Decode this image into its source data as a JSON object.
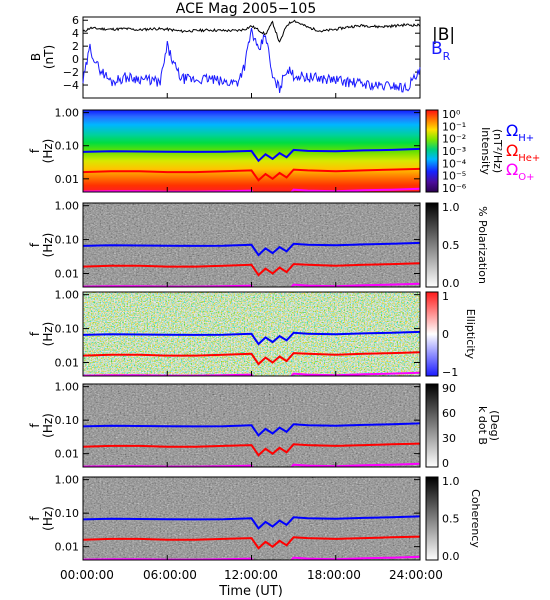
{
  "title": "ACE Mag 2005−105",
  "time_axis": {
    "label": "Time (UT)",
    "ticks": [
      "00:00:00",
      "06:00:00",
      "12:00:00",
      "18:00:00",
      "24:00:00"
    ],
    "hours": [
      0,
      6,
      12,
      18,
      24
    ]
  },
  "legend": {
    "b_abs": "|B|",
    "b_r_main": "B",
    "b_r_sub": "R",
    "h_main": "Ω",
    "h_sub": "H+",
    "he_main": "Ω",
    "he_sub": "He+",
    "o_main": "Ω",
    "o_sub": "O+"
  },
  "colors": {
    "b_abs": "#000000",
    "b_r": "#1a1aff",
    "omega_h": "#0000ff",
    "omega_he": "#ff0000",
    "omega_o": "#ff00ff"
  },
  "b_panel": {
    "ylabel_1": "B",
    "ylabel_2": "(nT)",
    "y_ticks": [
      "6",
      "4",
      "2",
      "0",
      "−2",
      "−4"
    ]
  },
  "freq_ylabel_1": "f",
  "freq_ylabel_2": "(Hz)",
  "freq_ticks": [
    "1.00",
    "0.10",
    "0.01"
  ],
  "colorbars": [
    {
      "label_1": "Intensity",
      "label_2": "(nT²/Hz)",
      "ticks": [
        "10⁰",
        "10⁻¹",
        "10⁻²",
        "10⁻³",
        "10⁻⁴",
        "10⁻⁵",
        "10⁻⁶"
      ],
      "scheme": "rainbow"
    },
    {
      "label_1": "% Polarization",
      "label_2": "",
      "ticks": [
        "1.0",
        "0.5",
        "0.0"
      ],
      "scheme": "gray"
    },
    {
      "label_1": "Ellipticity",
      "label_2": "",
      "ticks": [
        "1",
        "0",
        "−1"
      ],
      "scheme": "bwr"
    },
    {
      "label_1": "k dot B",
      "label_2": "(Deg)",
      "ticks": [
        "90",
        "60",
        "30",
        "0"
      ],
      "scheme": "gray"
    },
    {
      "label_1": "Coherency",
      "label_2": "",
      "ticks": [
        "1.0",
        "0.5",
        "0.0"
      ],
      "scheme": "gray"
    }
  ],
  "chart_data": {
    "type": "line",
    "title": "ACE Mag 2005−105",
    "x_unit": "hours UT",
    "xlim": [
      0,
      24
    ],
    "b_series": [
      {
        "name": "|B|",
        "ylim": [
          -6,
          6.5
        ],
        "x": [
          0,
          0.5,
          1,
          2,
          3,
          4,
          5,
          6,
          7,
          8,
          9,
          10,
          11,
          11.5,
          12,
          12.5,
          13,
          13.5,
          14,
          14.5,
          15,
          16,
          17,
          18,
          19,
          20,
          21,
          22,
          23,
          24
        ],
        "values": [
          4.2,
          4.8,
          4.7,
          4.6,
          4.7,
          4.5,
          4.7,
          4.6,
          4.3,
          4.4,
          4.5,
          4.4,
          4.4,
          4.6,
          5.1,
          4.5,
          3.8,
          5.7,
          2.5,
          5.2,
          6.0,
          4.9,
          4.3,
          4.6,
          5.0,
          5.2,
          5.0,
          5.1,
          5.3,
          5.2
        ]
      },
      {
        "name": "B_R",
        "ylim": [
          -6,
          6.5
        ],
        "x": [
          0,
          0.5,
          1,
          2,
          3,
          4,
          5,
          5.5,
          6,
          6.5,
          7,
          8,
          9,
          10,
          11,
          11.5,
          12,
          12.5,
          13,
          13.5,
          14,
          14.5,
          15,
          16,
          17,
          18,
          19,
          20,
          21,
          22,
          23,
          24
        ],
        "values": [
          -3.5,
          1.8,
          -1.0,
          -3.5,
          -2.8,
          -3.0,
          -3.3,
          -3.7,
          2.0,
          -1.0,
          -3.0,
          -3.2,
          -3.0,
          -3.6,
          -3.5,
          -1.0,
          4.5,
          1.0,
          4.0,
          -3.0,
          -4.5,
          -1.5,
          -2.5,
          -2.8,
          -3.0,
          -3.2,
          -3.6,
          -3.8,
          -4.2,
          -4.0,
          -4.5,
          -2.0
        ]
      }
    ],
    "cyclotron_frequencies": {
      "y_unit": "Hz",
      "ylim": [
        0.004,
        1.2
      ],
      "x": [
        0,
        2,
        4,
        6,
        8,
        10,
        12,
        12.5,
        13,
        13.5,
        14,
        14.5,
        15,
        16,
        18,
        20,
        22,
        24
      ],
      "series": [
        {
          "name": "H+",
          "values": [
            0.065,
            0.068,
            0.067,
            0.066,
            0.065,
            0.066,
            0.07,
            0.035,
            0.055,
            0.04,
            0.06,
            0.045,
            0.075,
            0.07,
            0.068,
            0.072,
            0.075,
            0.08
          ]
        },
        {
          "name": "He+",
          "values": [
            0.016,
            0.017,
            0.017,
            0.016,
            0.016,
            0.017,
            0.018,
            0.009,
            0.014,
            0.01,
            0.015,
            0.011,
            0.019,
            0.018,
            0.017,
            0.018,
            0.019,
            0.02
          ]
        },
        {
          "name": "O+",
          "values": [
            0.0041,
            0.0042,
            0.0042,
            0.0041,
            0.0041,
            0.0042,
            0.0044,
            0.0024,
            0.0035,
            0.0026,
            0.0038,
            0.0028,
            0.0047,
            0.0044,
            0.0042,
            0.0045,
            0.0047,
            0.005
          ]
        }
      ]
    },
    "spectrogram_panels": [
      "Intensity",
      "% Polarization",
      "Ellipticity",
      "k dot B",
      "Coherency"
    ]
  }
}
